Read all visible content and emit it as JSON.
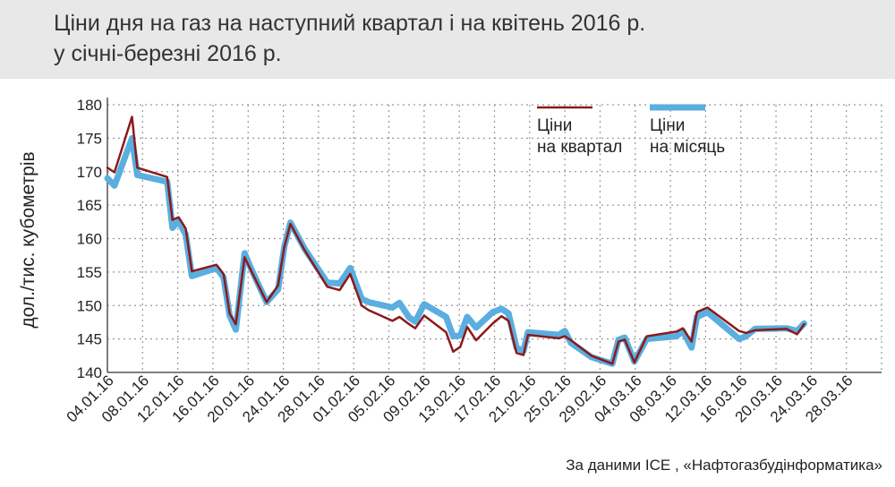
{
  "title": {
    "line1": "Ціни дня на газ на наступний квартал і на квітень 2016 р.",
    "line2": "у січні-березні 2016 р."
  },
  "source": "За даними ICE , «Нафтогазбудінформатика»",
  "colors": {
    "quarter": "#8b1a1a",
    "month": "#5aaee0",
    "grid": "#999999",
    "title_bg": "#e8e8e8"
  },
  "chart_data": {
    "type": "line",
    "ylabel": "дол./тис. кубометрів",
    "ylim": [
      140,
      180
    ],
    "yticks": [
      140,
      145,
      150,
      155,
      160,
      165,
      170,
      175,
      180
    ],
    "xlim": [
      0,
      88
    ],
    "xticks": [
      {
        "x": 0,
        "label": "04.01.16"
      },
      {
        "x": 4,
        "label": "08.01.16"
      },
      {
        "x": 8,
        "label": "12.01.16"
      },
      {
        "x": 12,
        "label": "16.01.16"
      },
      {
        "x": 16,
        "label": "20.01.16"
      },
      {
        "x": 20,
        "label": "24.01.16"
      },
      {
        "x": 24,
        "label": "28.01.16"
      },
      {
        "x": 28,
        "label": "01.02.16"
      },
      {
        "x": 32,
        "label": "05.02.16"
      },
      {
        "x": 36,
        "label": "09.02.16"
      },
      {
        "x": 40,
        "label": "13.02.16"
      },
      {
        "x": 44,
        "label": "17.02.16"
      },
      {
        "x": 48,
        "label": "21.02.16"
      },
      {
        "x": 52,
        "label": "25.02.16"
      },
      {
        "x": 56,
        "label": "29.02.16"
      },
      {
        "x": 60,
        "label": "04.03.16"
      },
      {
        "x": 64,
        "label": "08.03.16"
      },
      {
        "x": 68,
        "label": "12.03.16"
      },
      {
        "x": 72,
        "label": "16.03.16"
      },
      {
        "x": 76,
        "label": "20.03.16"
      },
      {
        "x": 80,
        "label": "24.03.16"
      },
      {
        "x": 84,
        "label": "28.03.16"
      }
    ],
    "grid": true,
    "legend_position": "top-right",
    "series": [
      {
        "name": "Ціни на квартал",
        "points": [
          [
            0,
            170.6
          ],
          [
            0.8,
            169.9
          ],
          [
            2.8,
            178.2
          ],
          [
            3.4,
            170.6
          ],
          [
            6.8,
            169.2
          ],
          [
            7.4,
            162.8
          ],
          [
            8.1,
            163.2
          ],
          [
            8.9,
            161.5
          ],
          [
            9.6,
            155.1
          ],
          [
            12.4,
            156.1
          ],
          [
            13.2,
            154.7
          ],
          [
            13.9,
            148.8
          ],
          [
            14.6,
            147.2
          ],
          [
            15.6,
            157.2
          ],
          [
            16.3,
            155.3
          ],
          [
            18.1,
            150.5
          ],
          [
            19.4,
            153.0
          ],
          [
            20.1,
            158.7
          ],
          [
            20.8,
            162.2
          ],
          [
            22.4,
            158.3
          ],
          [
            25.0,
            152.8
          ],
          [
            26.4,
            152.3
          ],
          [
            27.6,
            154.7
          ],
          [
            28.9,
            150.0
          ],
          [
            29.7,
            149.3
          ],
          [
            32.4,
            147.7
          ],
          [
            33.2,
            148.3
          ],
          [
            34.3,
            147.2
          ],
          [
            35.0,
            146.6
          ],
          [
            36.0,
            148.5
          ],
          [
            38.5,
            146.0
          ],
          [
            39.3,
            143.1
          ],
          [
            40.1,
            143.8
          ],
          [
            40.9,
            146.8
          ],
          [
            41.9,
            144.8
          ],
          [
            43.8,
            147.3
          ],
          [
            44.8,
            148.4
          ],
          [
            45.6,
            147.7
          ],
          [
            46.5,
            142.9
          ],
          [
            47.3,
            142.6
          ],
          [
            47.8,
            145.6
          ],
          [
            51.3,
            145.1
          ],
          [
            52.0,
            145.4
          ],
          [
            52.7,
            144.8
          ],
          [
            55.0,
            142.5
          ],
          [
            57.4,
            141.3
          ],
          [
            58.1,
            144.6
          ],
          [
            58.8,
            144.9
          ],
          [
            59.9,
            141.5
          ],
          [
            61.3,
            145.4
          ],
          [
            64.7,
            146.1
          ],
          [
            65.4,
            146.6
          ],
          [
            66.4,
            144.6
          ],
          [
            67.0,
            149.0
          ],
          [
            68.2,
            149.7
          ],
          [
            71.8,
            146.2
          ],
          [
            72.6,
            145.9
          ],
          [
            73.6,
            146.3
          ],
          [
            77.2,
            146.5
          ],
          [
            78.4,
            145.7
          ],
          [
            79.2,
            147.2
          ]
        ]
      },
      {
        "name": "Ціни на місяць",
        "points": [
          [
            0,
            169.0
          ],
          [
            0.8,
            167.9
          ],
          [
            2.8,
            175.0
          ],
          [
            3.4,
            169.5
          ],
          [
            6.8,
            168.5
          ],
          [
            7.4,
            161.6
          ],
          [
            8.1,
            162.6
          ],
          [
            8.9,
            160.6
          ],
          [
            9.6,
            154.4
          ],
          [
            12.4,
            155.6
          ],
          [
            13.2,
            154.2
          ],
          [
            13.9,
            148.5
          ],
          [
            14.6,
            146.4
          ],
          [
            15.6,
            157.8
          ],
          [
            16.3,
            155.6
          ],
          [
            18.1,
            150.5
          ],
          [
            19.4,
            152.4
          ],
          [
            20.1,
            158.7
          ],
          [
            20.8,
            162.4
          ],
          [
            22.4,
            158.5
          ],
          [
            25.0,
            153.4
          ],
          [
            26.4,
            153.3
          ],
          [
            27.6,
            155.6
          ],
          [
            28.9,
            151.0
          ],
          [
            29.7,
            150.5
          ],
          [
            32.4,
            149.7
          ],
          [
            33.2,
            150.4
          ],
          [
            34.3,
            148.2
          ],
          [
            35.0,
            147.6
          ],
          [
            36.0,
            150.2
          ],
          [
            38.5,
            148.3
          ],
          [
            39.3,
            145.4
          ],
          [
            40.1,
            145.5
          ],
          [
            40.9,
            148.3
          ],
          [
            41.9,
            146.7
          ],
          [
            43.8,
            149.0
          ],
          [
            44.8,
            149.5
          ],
          [
            45.6,
            148.8
          ],
          [
            46.5,
            143.7
          ],
          [
            47.3,
            143.2
          ],
          [
            47.8,
            146.0
          ],
          [
            51.3,
            145.6
          ],
          [
            52.0,
            146.2
          ],
          [
            52.7,
            144.4
          ],
          [
            55.0,
            142.3
          ],
          [
            57.4,
            141.3
          ],
          [
            58.1,
            144.9
          ],
          [
            58.8,
            145.2
          ],
          [
            59.9,
            141.6
          ],
          [
            61.3,
            145.0
          ],
          [
            64.7,
            145.4
          ],
          [
            65.4,
            146.2
          ],
          [
            66.4,
            143.7
          ],
          [
            67.0,
            148.3
          ],
          [
            68.2,
            149.0
          ],
          [
            71.8,
            145.0
          ],
          [
            72.6,
            145.4
          ],
          [
            73.6,
            146.5
          ],
          [
            77.2,
            146.6
          ],
          [
            78.4,
            146.2
          ],
          [
            79.2,
            147.3
          ]
        ]
      }
    ]
  }
}
